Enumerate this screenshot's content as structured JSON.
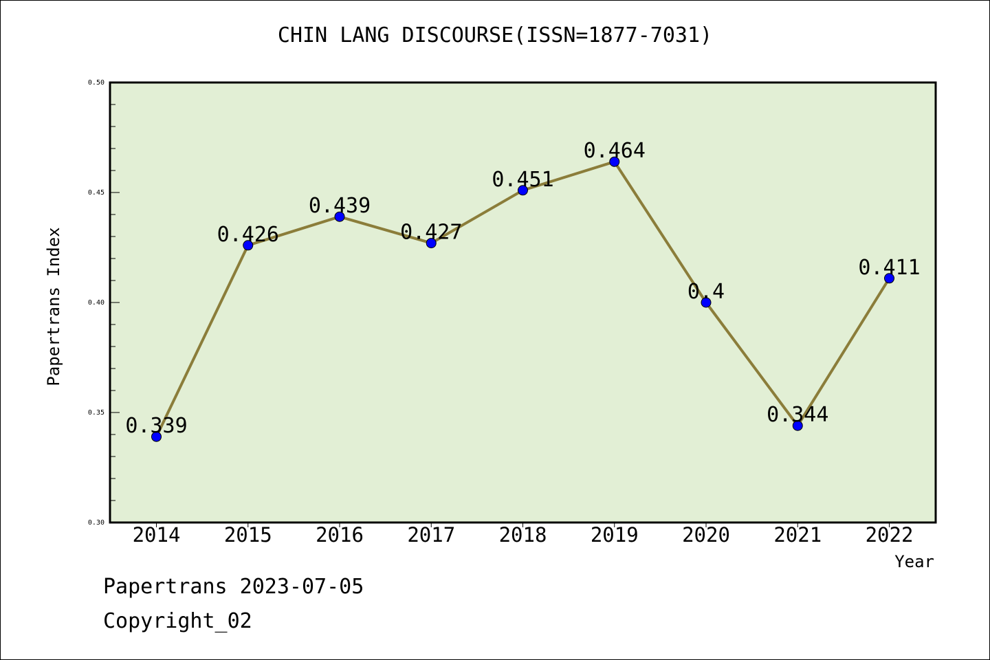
{
  "chart_data": {
    "type": "line",
    "title": "CHIN LANG DISCOURSE(ISSN=1877-7031)",
    "xlabel": "Year",
    "ylabel": "Papertrans Index",
    "categories": [
      "2014",
      "2015",
      "2016",
      "2017",
      "2018",
      "2019",
      "2020",
      "2021",
      "2022"
    ],
    "values": [
      0.339,
      0.426,
      0.439,
      0.427,
      0.451,
      0.464,
      0.4,
      0.344,
      0.411
    ],
    "data_labels": [
      "0.339",
      "0.426",
      "0.439",
      "0.427",
      "0.451",
      "0.464",
      "0.4",
      "0.344",
      "0.411"
    ],
    "ylim": [
      0.3,
      0.5
    ],
    "yticks": [
      "0.30",
      "0.35",
      "0.40",
      "0.45",
      "0.50"
    ],
    "grid": false,
    "colors": {
      "plot_background": "#e2efd5",
      "line": "#8b7d3a",
      "marker": "#0000ff"
    }
  },
  "footer": {
    "source": "Papertrans 2023-07-05",
    "copyright": "Copyright_02"
  }
}
